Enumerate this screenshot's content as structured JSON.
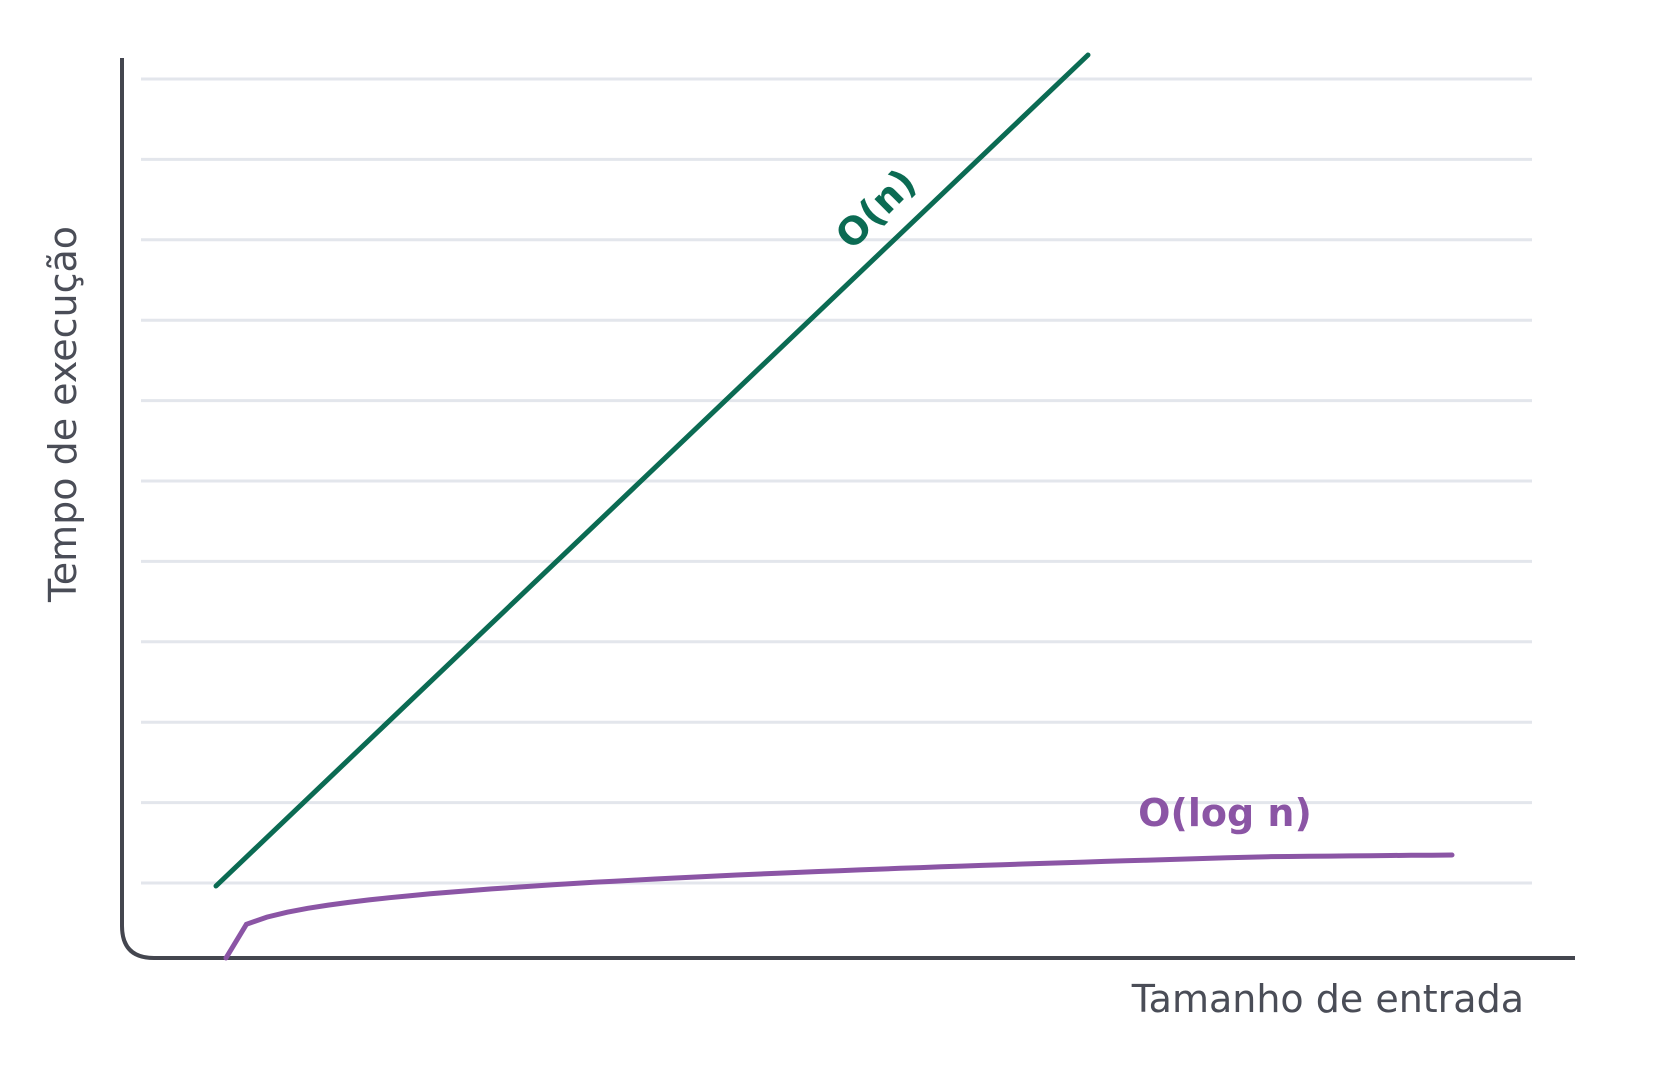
{
  "chart_data": {
    "type": "line",
    "title": "",
    "xlabel": "Tamanho de entrada",
    "ylabel": "Tempo de execução",
    "grid": true,
    "axis_ticks": false,
    "series": [
      {
        "name": "O(n)",
        "kind": "linear",
        "color": "#0b6b53"
      },
      {
        "name": "O(log n)",
        "kind": "logarithmic",
        "color": "#8b55a5"
      }
    ]
  },
  "colors": {
    "axis": "#44464f",
    "grid": "#e3e6ec",
    "text": "#4a4d57"
  }
}
